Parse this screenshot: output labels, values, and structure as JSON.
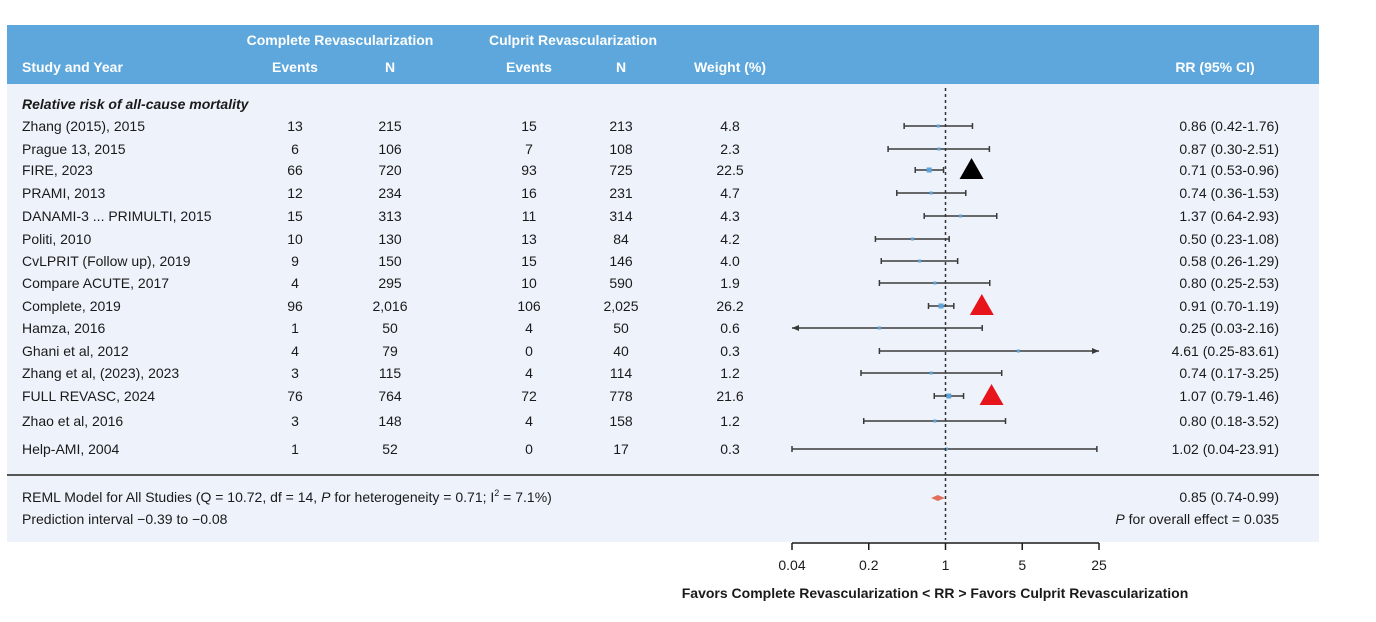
{
  "header": {
    "group_complete": "Complete Revascularization",
    "group_culprit": "Culprit Revascularization",
    "col_study": "Study and Year",
    "col_events": "Events",
    "col_n": "N",
    "col_weight": "Weight (%)",
    "col_rr": "RR (95% CI)"
  },
  "section_title": "Relative risk of all-cause mortality",
  "colors": {
    "header_bg": "#5da7dc",
    "panel_bg": "#eef3fb",
    "point": "#5ba3d9",
    "pooled": "#e0705a",
    "triangle_red": "#e8141c",
    "triangle_black": "#000000",
    "line": "#3a3a3a"
  },
  "chart_data": {
    "type": "forest",
    "x_scale": "log",
    "xlim": [
      0.04,
      25
    ],
    "xticks": [
      "0.04",
      "0.2",
      "1",
      "5",
      "25"
    ],
    "reference_line": 1,
    "xlabel": "Favors Complete Revascularization < RR > Favors Culprit Revascularization",
    "studies": [
      {
        "study": "Zhang (2015), 2015",
        "cr_events": "13",
        "cr_n": "215",
        "cu_events": "15",
        "cu_n": "213",
        "weight": "4.8",
        "rr": 0.86,
        "lo": 0.42,
        "hi": 1.76,
        "ci_text": "0.86 (0.42-1.76)",
        "marker": ""
      },
      {
        "study": "Prague 13, 2015",
        "cr_events": "6",
        "cr_n": "106",
        "cu_events": "7",
        "cu_n": "108",
        "weight": "2.3",
        "rr": 0.87,
        "lo": 0.3,
        "hi": 2.51,
        "ci_text": "0.87 (0.30-2.51)",
        "marker": ""
      },
      {
        "study": "FIRE, 2023",
        "cr_events": "66",
        "cr_n": "720",
        "cu_events": "93",
        "cu_n": "725",
        "weight": "22.5",
        "rr": 0.71,
        "lo": 0.53,
        "hi": 0.96,
        "ci_text": "0.71 (0.53-0.96)",
        "marker": "black"
      },
      {
        "study": "PRAMI, 2013",
        "cr_events": "12",
        "cr_n": "234",
        "cu_events": "16",
        "cu_n": "231",
        "weight": "4.7",
        "rr": 0.74,
        "lo": 0.36,
        "hi": 1.53,
        "ci_text": "0.74 (0.36-1.53)",
        "marker": ""
      },
      {
        "study": "DANAMI-3 ... PRIMULTI, 2015",
        "cr_events": "15",
        "cr_n": "313",
        "cu_events": "11",
        "cu_n": "314",
        "weight": "4.3",
        "rr": 1.37,
        "lo": 0.64,
        "hi": 2.93,
        "ci_text": "1.37 (0.64-2.93)",
        "marker": ""
      },
      {
        "study": "Politi, 2010",
        "cr_events": "10",
        "cr_n": "130",
        "cu_events": "13",
        "cu_n": "84",
        "weight": "4.2",
        "rr": 0.5,
        "lo": 0.23,
        "hi": 1.08,
        "ci_text": "0.50 (0.23-1.08)",
        "marker": ""
      },
      {
        "study": "CvLPRIT (Follow up), 2019",
        "cr_events": "9",
        "cr_n": "150",
        "cu_events": "15",
        "cu_n": "146",
        "weight": "4.0",
        "rr": 0.58,
        "lo": 0.26,
        "hi": 1.29,
        "ci_text": "0.58 (0.26-1.29)",
        "marker": ""
      },
      {
        "study": "Compare ACUTE, 2017",
        "cr_events": "4",
        "cr_n": "295",
        "cu_events": "10",
        "cu_n": "590",
        "weight": "1.9",
        "rr": 0.8,
        "lo": 0.25,
        "hi": 2.53,
        "ci_text": "0.80 (0.25-2.53)",
        "marker": ""
      },
      {
        "study": "Complete, 2019",
        "cr_events": "96",
        "cr_n": "2,016",
        "cu_events": "106",
        "cu_n": "2,025",
        "weight": "26.2",
        "rr": 0.91,
        "lo": 0.7,
        "hi": 1.19,
        "ci_text": "0.91 (0.70-1.19)",
        "marker": "red"
      },
      {
        "study": "Hamza, 2016",
        "cr_events": "1",
        "cr_n": "50",
        "cu_events": "4",
        "cu_n": "50",
        "weight": "0.6",
        "rr": 0.25,
        "lo": 0.03,
        "hi": 2.16,
        "ci_text": "0.25 (0.03-2.16)",
        "marker": ""
      },
      {
        "study": "Ghani et al, 2012",
        "cr_events": "4",
        "cr_n": "79",
        "cu_events": "0",
        "cu_n": "40",
        "weight": "0.3",
        "rr": 4.61,
        "lo": 0.25,
        "hi": 83.61,
        "ci_text": "4.61 (0.25-83.61)",
        "marker": ""
      },
      {
        "study": "Zhang et al, (2023), 2023",
        "cr_events": "3",
        "cr_n": "115",
        "cu_events": "4",
        "cu_n": "114",
        "weight": "1.2",
        "rr": 0.74,
        "lo": 0.17,
        "hi": 3.25,
        "ci_text": "0.74 (0.17-3.25)",
        "marker": ""
      },
      {
        "study": "FULL REVASC, 2024",
        "cr_events": "76",
        "cr_n": "764",
        "cu_events": "72",
        "cu_n": "778",
        "weight": "21.6",
        "rr": 1.07,
        "lo": 0.79,
        "hi": 1.46,
        "ci_text": "1.07 (0.79-1.46)",
        "marker": "red"
      },
      {
        "study": "Zhao et al, 2016",
        "cr_events": "3",
        "cr_n": "148",
        "cu_events": "4",
        "cu_n": "158",
        "weight": "1.2",
        "rr": 0.8,
        "lo": 0.18,
        "hi": 3.52,
        "ci_text": "0.80 (0.18-3.52)",
        "marker": ""
      },
      {
        "study": "Help-AMI, 2004",
        "cr_events": "1",
        "cr_n": "52",
        "cu_events": "0",
        "cu_n": "17",
        "weight": "0.3",
        "rr": 1.02,
        "lo": 0.04,
        "hi": 23.91,
        "ci_text": "1.02 (0.04-23.91)",
        "marker": ""
      }
    ],
    "pooled": {
      "label_pre": "REML Model for All Studies (Q = 10.72, df = 14, ",
      "label_p": "P",
      "label_mid": " for heterogeneity = 0.71; I",
      "label_sup": "2",
      "label_post": " = 7.1%)",
      "rr": 0.85,
      "lo": 0.74,
      "hi": 0.99,
      "ci_text": "0.85 (0.74-0.99)",
      "prediction_text": "Prediction interval −0.39 to −0.08",
      "overall_p_label": "P",
      "overall_text": " for overall effect = 0.035"
    }
  }
}
